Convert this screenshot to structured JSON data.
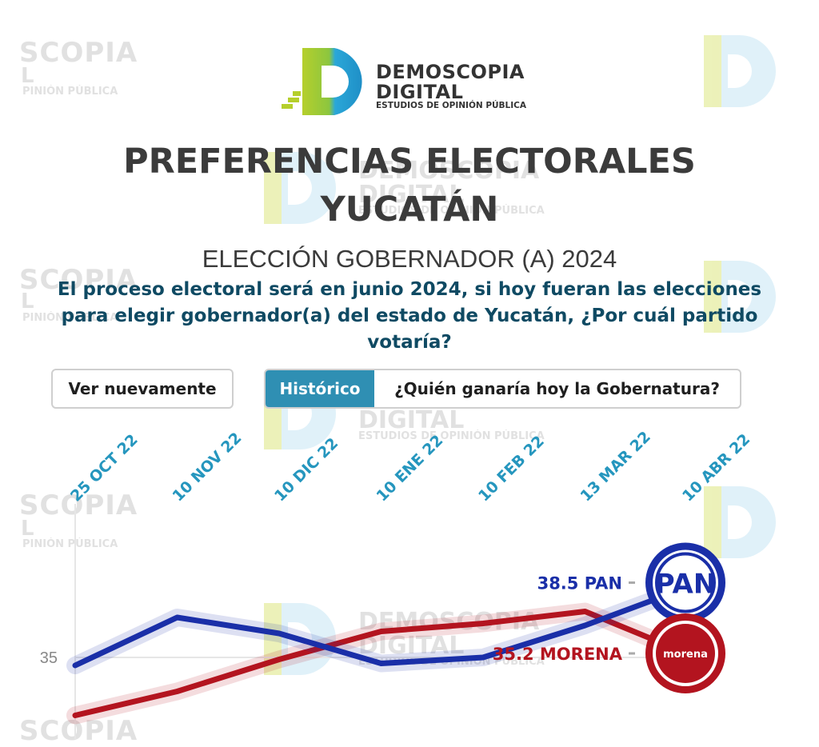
{
  "brand": {
    "line1": "DEMOSCOPIA",
    "line2": "DIGITAL",
    "tagline": "ESTUDIOS DE OPINIÓN PÚBLICA",
    "colors": {
      "green": "#b5cf2c",
      "blue": "#2aa7d8",
      "text": "#333333"
    }
  },
  "watermark": {
    "word1": "SCOPIA",
    "word2": "L",
    "word3": "PINIÓN PÚBLICA",
    "full1": "DEMOSCOPIA",
    "full2": "DIGITAL",
    "full3": "ESTUDIOS DE OPINIÓN PÚBLICA"
  },
  "header": {
    "title_line1": "PREFERENCIAS ELECTORALES",
    "title_line2": "YUCATÁN",
    "subtitle": "ELECCIÓN GOBERNADOR (A) 2024",
    "question": "El proceso electoral será en junio 2024, si hoy fueran las elecciones para elegir gobernador(a) del estado de Yucatán, ¿Por cuál partido votaría?"
  },
  "controls": {
    "replay_label": "Ver nuevamente",
    "tab_active_label": "Histórico",
    "tab_other_label": "¿Quién ganaría hoy la Gobernatura?"
  },
  "chart_data": {
    "type": "line",
    "categories": [
      "25 OCT 22",
      "10 NOV 22",
      "10 DIC 22",
      "10 ENE 22",
      "10 FEB 22",
      "13 MAR 22",
      "10 ABR 22"
    ],
    "y_ticks": [
      35
    ],
    "ylim": [
      31.5,
      46
    ],
    "grid": true,
    "series": [
      {
        "name": "PAN",
        "color": "#1a2fa8",
        "values": [
          34.6,
          37.0,
          36.2,
          34.7,
          35.0,
          36.6,
          38.5
        ],
        "end_label": "38.5 PAN",
        "emblem_text": "PAN",
        "emblem_ring": "#1a2fa8"
      },
      {
        "name": "MORENA",
        "color": "#b3141f",
        "values": [
          32.1,
          33.3,
          34.9,
          36.3,
          36.7,
          37.3,
          35.2
        ],
        "end_label": "35.2 MORENA",
        "emblem_text": "morena",
        "emblem_ring": "#b3141f"
      }
    ]
  }
}
